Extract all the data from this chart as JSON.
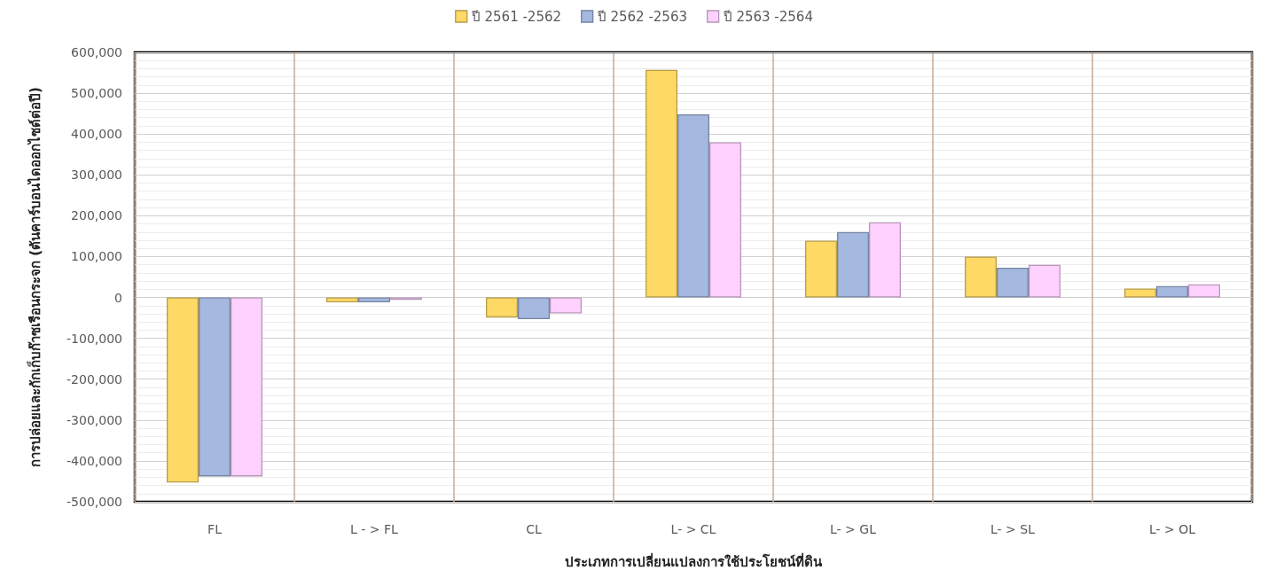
{
  "chart_data": {
    "type": "bar",
    "xlabel": "ประเภทการเปลี่ยนแปลงการใช้ประโยชน์ที่ดิน",
    "ylabel": "การปล่อยและกักเก็บก๊าซเรือนกระจก (ตันคาร์บอนไดออกไซด์ต่อปี)",
    "categories": [
      "FL",
      "L - > FL",
      "CL",
      "L- > CL",
      "L- > GL",
      "L- > SL",
      "L- > OL"
    ],
    "series": [
      {
        "name": "ปี 2561 -2562",
        "color": "#ffd966",
        "values": [
          -453000,
          -12000,
          -49000,
          557000,
          139000,
          100000,
          22000
        ]
      },
      {
        "name": "ปี 2562 -2563",
        "color": "#a4b8e0",
        "values": [
          -438000,
          -12000,
          -53000,
          448000,
          160000,
          73000,
          28000
        ]
      },
      {
        "name": "ปี 2563 -2564",
        "color": "#ffd1ff",
        "values": [
          -438000,
          -6000,
          -39000,
          380000,
          184000,
          80000,
          32000
        ]
      }
    ],
    "ylim": [
      -500000,
      600000
    ],
    "yticks": [
      {
        "value": -500000,
        "label": "-500,000"
      },
      {
        "value": -400000,
        "label": "-400,000"
      },
      {
        "value": -300000,
        "label": "-300,000"
      },
      {
        "value": -200000,
        "label": "-200,000"
      },
      {
        "value": -100000,
        "label": "-100,000"
      },
      0,
      {
        "value": 100000,
        "label": "100,000"
      },
      {
        "value": 200000,
        "label": "200,000"
      },
      {
        "value": 300000,
        "label": "300,000"
      },
      {
        "value": 400000,
        "label": "400,000"
      },
      {
        "value": 500000,
        "label": "500,000"
      },
      {
        "value": 600000,
        "label": "600,000"
      }
    ],
    "grid": true,
    "legend": "top"
  }
}
